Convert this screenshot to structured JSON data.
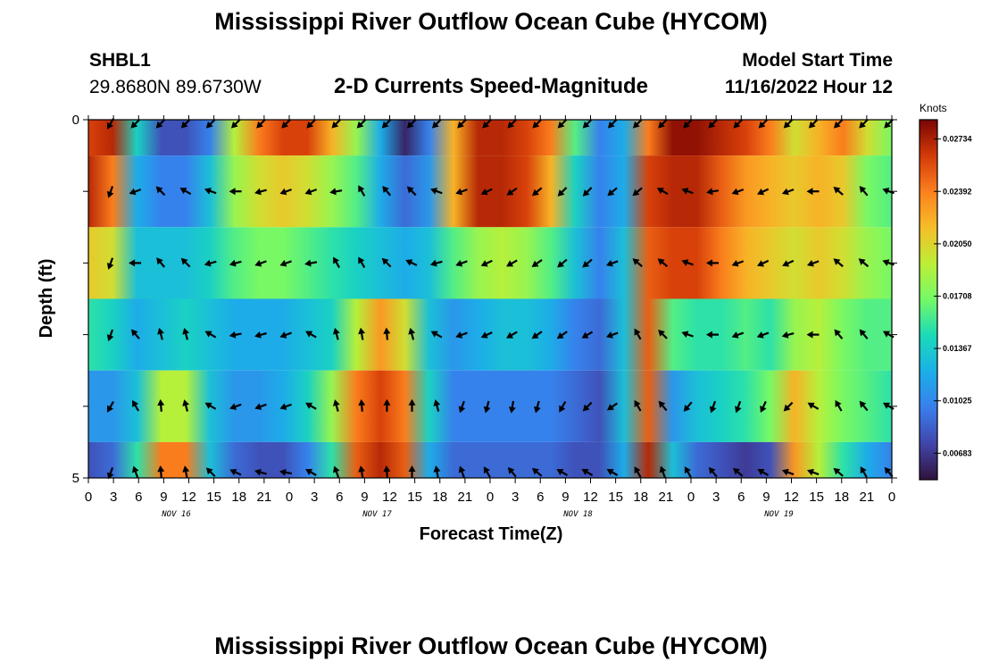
{
  "header": {
    "title": "Mississippi River Outflow Ocean Cube (HYCOM)",
    "station_id": "SHBL1",
    "station_coords": "29.8680N  89.6730W",
    "subtitle": "2-D Currents Speed-Magnitude",
    "model_start_label": "Model Start Time",
    "model_start_value": "11/16/2022 Hour 12"
  },
  "footer": {
    "title": "Mississippi River Outflow Ocean Cube (HYCOM)"
  },
  "chart_data": {
    "type": "heatmap",
    "xlabel": "Forecast Time(Z)",
    "ylabel": "Depth (ft)",
    "x_tick_labels": [
      "0",
      "3",
      "6",
      "9",
      "12",
      "15",
      "18",
      "21",
      "0",
      "3",
      "6",
      "9",
      "12",
      "15",
      "18",
      "21",
      "0",
      "3",
      "6",
      "9",
      "12",
      "15",
      "18",
      "21",
      "0",
      "3",
      "6",
      "9",
      "12",
      "15",
      "18",
      "21",
      "0"
    ],
    "day_labels": [
      {
        "label": "NOV 16",
        "tick_index": 4
      },
      {
        "label": "NOV 17",
        "tick_index": 12
      },
      {
        "label": "NOV 18",
        "tick_index": 20
      },
      {
        "label": "NOV 19",
        "tick_index": 28
      }
    ],
    "y_tick_labels": [
      "0",
      "",
      "",
      "",
      "",
      "5"
    ],
    "ylim": [
      0,
      5
    ],
    "colorbar": {
      "unit": "Knots",
      "min": 0.0051,
      "max": 0.0286,
      "tick_labels": [
        "0.00683",
        "0.01025",
        "0.01367",
        "0.01708",
        "0.02050",
        "0.02392",
        "0.02734"
      ],
      "tick_values": [
        0.00683,
        0.01025,
        0.01367,
        0.01708,
        0.0205,
        0.02392,
        0.02734
      ]
    },
    "rows": [
      {
        "name": "layer-1",
        "speed": [
          0.026,
          0.027,
          0.014,
          0.008,
          0.008,
          0.01,
          0.019,
          0.024,
          0.026,
          0.026,
          0.022,
          0.018,
          0.012,
          0.006,
          0.01,
          0.022,
          0.027,
          0.027,
          0.026,
          0.024,
          0.016,
          0.01,
          0.012,
          0.024,
          0.028,
          0.028,
          0.027,
          0.026,
          0.024,
          0.02,
          0.022,
          0.024,
          0.02,
          0.017
        ]
      },
      {
        "name": "layer-2",
        "speed": [
          0.027,
          0.024,
          0.012,
          0.01,
          0.01,
          0.013,
          0.018,
          0.02,
          0.021,
          0.02,
          0.018,
          0.016,
          0.012,
          0.009,
          0.011,
          0.022,
          0.027,
          0.027,
          0.026,
          0.022,
          0.014,
          0.01,
          0.012,
          0.026,
          0.027,
          0.027,
          0.025,
          0.023,
          0.022,
          0.021,
          0.022,
          0.021,
          0.017,
          0.016
        ]
      },
      {
        "name": "layer-3",
        "speed": [
          0.021,
          0.02,
          0.013,
          0.013,
          0.013,
          0.014,
          0.016,
          0.017,
          0.017,
          0.016,
          0.015,
          0.014,
          0.013,
          0.012,
          0.013,
          0.016,
          0.018,
          0.019,
          0.018,
          0.016,
          0.013,
          0.01,
          0.013,
          0.025,
          0.026,
          0.026,
          0.024,
          0.022,
          0.021,
          0.02,
          0.021,
          0.02,
          0.018,
          0.017
        ]
      },
      {
        "name": "layer-4",
        "speed": [
          0.015,
          0.014,
          0.012,
          0.013,
          0.014,
          0.013,
          0.012,
          0.012,
          0.012,
          0.013,
          0.014,
          0.019,
          0.023,
          0.02,
          0.013,
          0.011,
          0.012,
          0.013,
          0.013,
          0.012,
          0.01,
          0.009,
          0.013,
          0.025,
          0.016,
          0.015,
          0.015,
          0.016,
          0.015,
          0.018,
          0.019,
          0.017,
          0.016,
          0.016
        ]
      },
      {
        "name": "layer-5",
        "speed": [
          0.011,
          0.011,
          0.013,
          0.019,
          0.019,
          0.013,
          0.011,
          0.011,
          0.012,
          0.014,
          0.018,
          0.024,
          0.026,
          0.024,
          0.014,
          0.01,
          0.01,
          0.01,
          0.01,
          0.01,
          0.009,
          0.008,
          0.013,
          0.025,
          0.011,
          0.013,
          0.014,
          0.015,
          0.017,
          0.022,
          0.019,
          0.017,
          0.016,
          0.015
        ]
      },
      {
        "name": "layer-6",
        "speed": [
          0.008,
          0.009,
          0.015,
          0.024,
          0.024,
          0.013,
          0.009,
          0.008,
          0.008,
          0.01,
          0.015,
          0.025,
          0.027,
          0.025,
          0.012,
          0.009,
          0.009,
          0.009,
          0.009,
          0.009,
          0.008,
          0.008,
          0.012,
          0.027,
          0.013,
          0.009,
          0.008,
          0.007,
          0.008,
          0.023,
          0.019,
          0.015,
          0.012,
          0.01
        ]
      }
    ],
    "arrow_rows": [
      {
        "name": "arrows-depth-0",
        "directions_deg": [
          210,
          225,
          225,
          225,
          225,
          225,
          225,
          225,
          225,
          225,
          225,
          225,
          225,
          225,
          225,
          225,
          225,
          225,
          225,
          225,
          225,
          225,
          225,
          225,
          225,
          225,
          225,
          225,
          225,
          225,
          225,
          225,
          225
        ]
      },
      {
        "name": "arrows-depth-1",
        "directions_deg": [
          200,
          250,
          315,
          300,
          290,
          270,
          255,
          250,
          250,
          260,
          330,
          320,
          315,
          290,
          250,
          245,
          235,
          230,
          225,
          225,
          230,
          230,
          300,
          290,
          260,
          250,
          245,
          250,
          270,
          310,
          320,
          290,
          280
        ]
      },
      {
        "name": "arrows-depth-2",
        "directions_deg": [
          200,
          270,
          320,
          315,
          255,
          255,
          250,
          250,
          260,
          330,
          330,
          315,
          295,
          255,
          250,
          245,
          240,
          235,
          230,
          230,
          250,
          310,
          310,
          290,
          270,
          250,
          245,
          245,
          250,
          310,
          310,
          290,
          280
        ]
      },
      {
        "name": "arrows-depth-3",
        "directions_deg": [
          200,
          320,
          345,
          345,
          300,
          260,
          255,
          250,
          300,
          345,
          350,
          355,
          345,
          300,
          250,
          245,
          240,
          235,
          235,
          240,
          250,
          330,
          315,
          290,
          270,
          250,
          250,
          255,
          270,
          320,
          320,
          300,
          280
        ]
      },
      {
        "name": "arrows-depth-4",
        "directions_deg": [
          210,
          330,
          355,
          345,
          300,
          250,
          250,
          250,
          300,
          345,
          355,
          0,
          0,
          345,
          200,
          195,
          190,
          195,
          210,
          225,
          235,
          330,
          320,
          220,
          200,
          200,
          205,
          225,
          300,
          330,
          320,
          300,
          290
        ]
      },
      {
        "name": "arrows-depth-5",
        "directions_deg": [
          200,
          340,
          355,
          350,
          315,
          295,
          285,
          280,
          300,
          340,
          350,
          355,
          0,
          350,
          340,
          330,
          320,
          310,
          300,
          300,
          300,
          330,
          340,
          330,
          320,
          310,
          300,
          290,
          290,
          310,
          330,
          320,
          300
        ]
      }
    ]
  }
}
